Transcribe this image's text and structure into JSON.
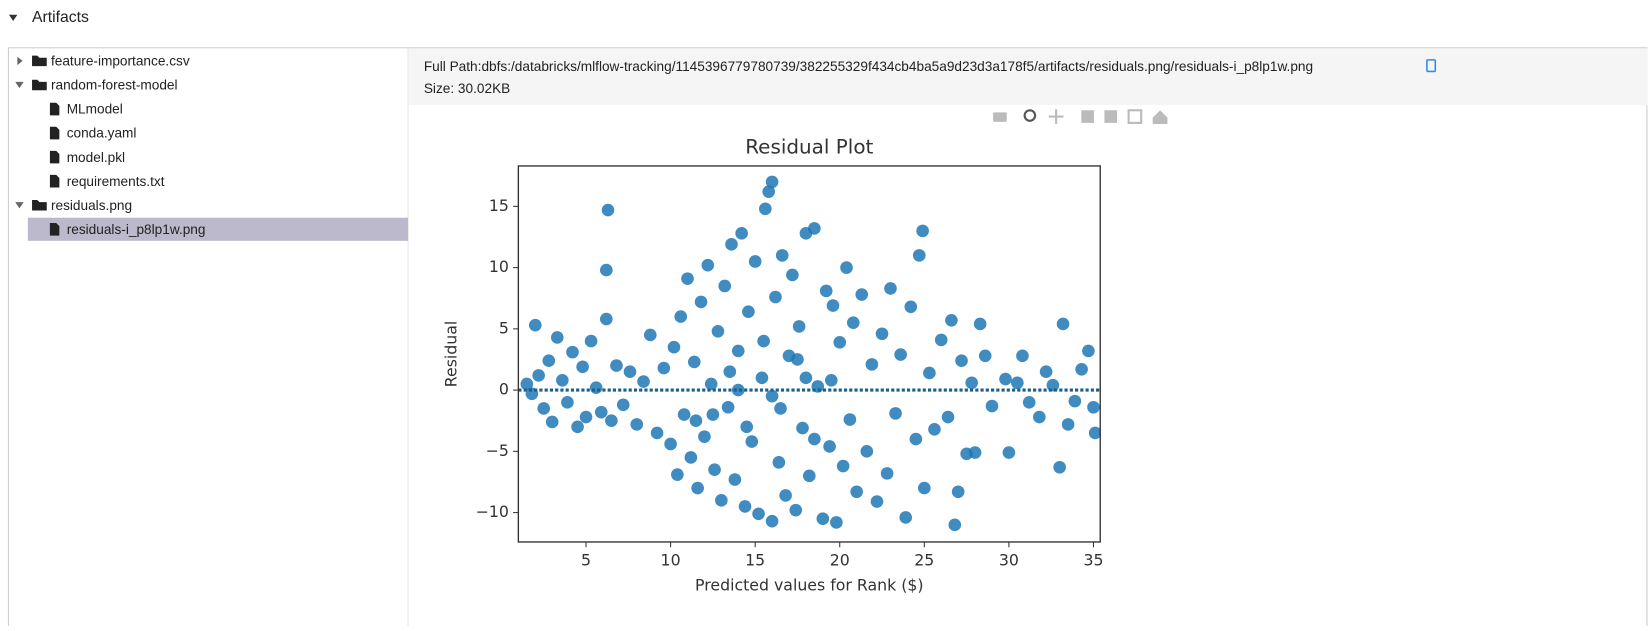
{
  "header": {
    "title": "Artifacts"
  },
  "tree": [
    {
      "label": "feature-importance.csv",
      "expanded": false
    },
    {
      "label": "random-forest-model",
      "expanded": true,
      "children": [
        {
          "label": "MLmodel"
        },
        {
          "label": "conda.yaml"
        },
        {
          "label": "model.pkl"
        },
        {
          "label": "requirements.txt"
        }
      ]
    },
    {
      "label": "residuals.png",
      "expanded": true,
      "children": [
        {
          "label": "residuals-i_p8lp1w.png",
          "selected": true
        }
      ]
    }
  ],
  "details": {
    "full_path": "Full Path:dbfs:/databricks/mlflow-tracking/1145396779780739/382255329f434cb4ba5a9d23d3a178f5/artifacts/residuals.png/residuals-i_p8lp1w.png",
    "size": "Size: 30.02KB"
  },
  "chart_data": {
    "type": "scatter",
    "title": "Residual Plot",
    "x_label": "Predicted values for Rank ($)",
    "y_label": "Residual",
    "color": "#1f77b4",
    "xlim": [
      1.0,
      35.4
    ],
    "ylim": [
      -12.4,
      18.3
    ],
    "xticks": [
      5,
      10,
      15,
      20,
      25,
      30,
      35
    ],
    "yticks": [
      {
        "value": -10,
        "label": "−10"
      },
      {
        "value": -5,
        "label": "−5"
      },
      0,
      5,
      10,
      15
    ],
    "x": [
      1.5,
      1.8,
      2.0,
      2.2,
      2.5,
      2.8,
      3.0,
      3.3,
      3.6,
      3.9,
      4.2,
      4.5,
      4.8,
      5.0,
      5.3,
      5.6,
      5.9,
      6.2,
      6.3,
      6.2,
      6.5,
      6.8,
      7.2,
      7.6,
      8.0,
      8.4,
      8.8,
      9.2,
      9.6,
      10.0,
      10.2,
      10.4,
      10.6,
      10.8,
      11.0,
      11.2,
      11.4,
      11.6,
      11.8,
      12.0,
      12.2,
      12.4,
      12.6,
      12.8,
      13.0,
      13.2,
      13.4,
      13.6,
      13.8,
      14.0,
      14.2,
      14.4,
      14.6,
      14.8,
      15.0,
      15.2,
      15.4,
      15.6,
      15.8,
      16.0,
      16.0,
      16.2,
      16.4,
      16.6,
      16.8,
      17.0,
      17.2,
      17.4,
      17.6,
      17.8,
      18.0,
      18.2,
      18.5,
      18.7,
      19.0,
      19.2,
      19.4,
      19.6,
      19.8,
      20.0,
      20.2,
      20.4,
      20.6,
      20.8,
      21.0,
      21.3,
      21.6,
      21.9,
      22.2,
      22.5,
      22.8,
      23.0,
      23.3,
      23.6,
      23.9,
      24.2,
      24.5,
      24.7,
      24.9,
      25.0,
      25.3,
      25.6,
      26.0,
      26.4,
      26.6,
      26.8,
      27.0,
      27.2,
      27.5,
      27.8,
      28.0,
      28.3,
      28.6,
      29.0,
      29.8,
      30.0,
      30.5,
      30.8,
      31.2,
      31.8,
      32.2,
      32.6,
      33.0,
      33.2,
      33.5,
      33.9,
      34.3,
      34.7,
      35.0,
      35.1,
      12.5,
      13.5,
      14.5,
      15.5,
      16.5,
      17.5,
      18.5,
      19.5,
      11.5,
      14.0,
      16.0,
      18.0
    ],
    "values": [
      0.5,
      -0.3,
      5.3,
      1.2,
      -1.5,
      2.4,
      -2.6,
      4.3,
      0.8,
      -1.0,
      3.1,
      -3.0,
      1.9,
      -2.2,
      4.0,
      0.2,
      -1.8,
      9.8,
      14.7,
      5.8,
      -2.5,
      2.0,
      -1.2,
      1.5,
      -2.8,
      0.7,
      4.5,
      -3.5,
      1.8,
      -4.4,
      3.5,
      -6.9,
      6.0,
      -2.0,
      9.1,
      -5.5,
      2.3,
      -8.0,
      7.2,
      -3.8,
      10.2,
      0.5,
      -6.5,
      4.8,
      -9.0,
      8.5,
      -1.4,
      11.9,
      -7.3,
      3.2,
      12.8,
      -9.5,
      6.4,
      -4.2,
      10.5,
      -10.1,
      1.0,
      14.8,
      16.2,
      17.0,
      -10.7,
      7.6,
      -5.9,
      11.0,
      -8.6,
      2.8,
      9.4,
      -9.8,
      5.2,
      -3.1,
      12.8,
      -7.0,
      13.2,
      0.3,
      -10.5,
      8.1,
      -4.6,
      6.9,
      -10.8,
      3.9,
      -6.2,
      10.0,
      -2.4,
      5.5,
      -8.3,
      7.8,
      -5.0,
      2.1,
      -9.1,
      4.6,
      -6.8,
      8.3,
      -1.9,
      2.9,
      -10.4,
      6.8,
      -4.0,
      11.0,
      13.0,
      -8.0,
      1.4,
      -3.2,
      4.1,
      -2.2,
      5.7,
      -11.0,
      -8.3,
      2.4,
      -5.2,
      0.6,
      -5.1,
      5.4,
      2.8,
      -1.3,
      0.9,
      -5.1,
      0.6,
      2.8,
      -1.0,
      -2.2,
      1.5,
      0.4,
      -6.3,
      5.4,
      -2.8,
      -0.9,
      1.7,
      3.2,
      -1.4,
      -3.5,
      -2.0,
      1.5,
      -3.0,
      4.0,
      -1.5,
      2.5,
      -4.0,
      0.8,
      -2.5,
      0.0,
      -0.5,
      1.0
    ],
    "fit_line": {
      "x": [
        1.0,
        35.4
      ],
      "values": [
        0.0,
        0.0
      ],
      "color": "#1a5f8e"
    }
  }
}
